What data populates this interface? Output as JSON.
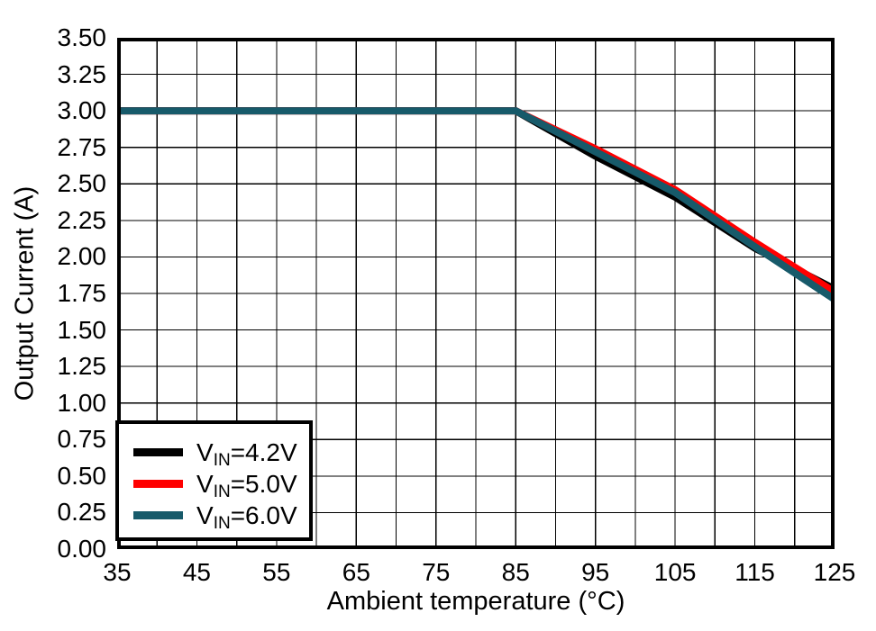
{
  "chart_data": {
    "type": "line",
    "title": "",
    "xlabel": "Ambient temperature (°C)",
    "ylabel": "Output Current (A)",
    "xlim": [
      35,
      125
    ],
    "ylim": [
      0,
      3.5
    ],
    "x_grid_step": 5,
    "y_grid_step": 0.25,
    "grid": true,
    "legend_position": "bottom-left",
    "x_tick_labels": [
      "35",
      "45",
      "55",
      "65",
      "75",
      "85",
      "95",
      "105",
      "115",
      "125"
    ],
    "y_tick_labels": [
      "3.50",
      "3.25",
      "3.00",
      "2.75",
      "2.50",
      "2.25",
      "2.00",
      "1.75",
      "1.50",
      "1.25",
      "1.00",
      "0.75",
      "0.50",
      "0.25",
      "0.00"
    ],
    "frame_color": "#000000",
    "grid_color": "#000000",
    "series": [
      {
        "name": "VIN=4.2V",
        "label_parts": {
          "prefix": "V",
          "sub": "IN",
          "suffix": "=4.2V"
        },
        "color": "#000000",
        "line_width": 8,
        "x": [
          35,
          85,
          95,
          105,
          115,
          125
        ],
        "y": [
          3.0,
          3.0,
          2.69,
          2.41,
          2.06,
          1.78
        ]
      },
      {
        "name": "VIN=5.0V",
        "label_parts": {
          "prefix": "V",
          "sub": "IN",
          "suffix": "=5.0V"
        },
        "color": "#FF0000",
        "line_width": 8,
        "x": [
          35,
          85,
          95,
          105,
          115,
          125
        ],
        "y": [
          3.0,
          3.0,
          2.74,
          2.46,
          2.1,
          1.76
        ]
      },
      {
        "name": "VIN=6.0V",
        "label_parts": {
          "prefix": "V",
          "sub": "IN",
          "suffix": "=6.0V"
        },
        "color": "#175A6A",
        "line_width": 8,
        "x": [
          35,
          85,
          95,
          105,
          115,
          125
        ],
        "y": [
          3.0,
          3.0,
          2.72,
          2.44,
          2.07,
          1.71
        ]
      }
    ]
  }
}
